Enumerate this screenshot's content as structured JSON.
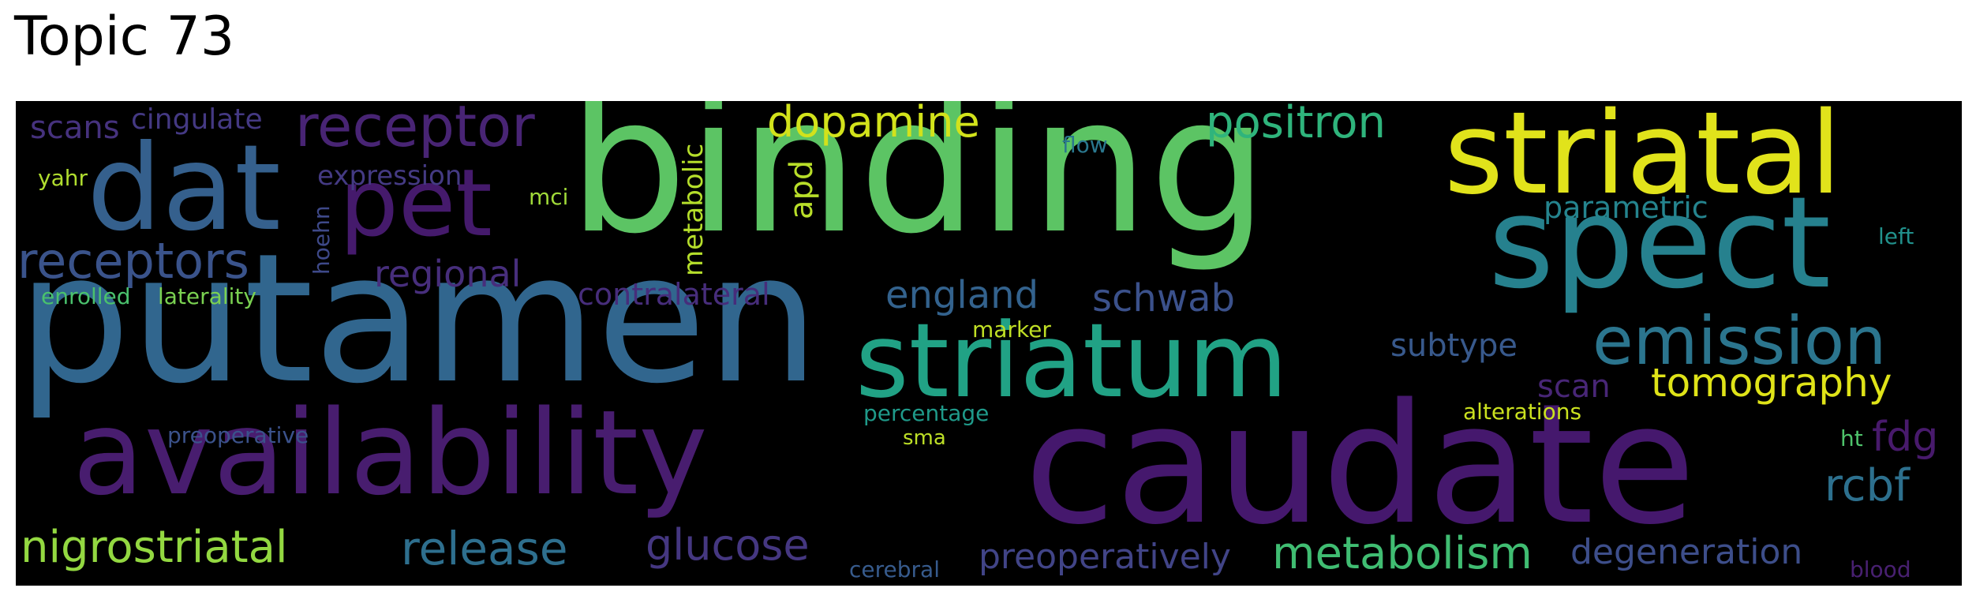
{
  "title": "Topic 73",
  "words": {
    "binding": {
      "text": "binding",
      "color": "#5cc464"
    },
    "putamen": {
      "text": "putamen",
      "color": "#31668e"
    },
    "caudate": {
      "text": "caudate",
      "color": "#45186d"
    },
    "availability": {
      "text": "availability",
      "color": "#481d6f"
    },
    "striatal": {
      "text": "striatal",
      "color": "#e1e31b"
    },
    "spect": {
      "text": "spect",
      "color": "#26818e"
    },
    "striatum": {
      "text": "striatum",
      "color": "#21a285"
    },
    "dat": {
      "text": "dat",
      "color": "#35608d"
    },
    "pet": {
      "text": "pet",
      "color": "#451a6c"
    },
    "emission": {
      "text": "emission",
      "color": "#2b758e"
    },
    "receptor": {
      "text": "receptor",
      "color": "#482474"
    },
    "receptors": {
      "text": "receptors",
      "color": "#3a538b"
    },
    "nigrostriatal": {
      "text": "nigrostriatal",
      "color": "#93d841"
    },
    "release": {
      "text": "release",
      "color": "#2e6f8e"
    },
    "metabolism": {
      "text": "metabolism",
      "color": "#40bd72"
    },
    "glucose": {
      "text": "glucose",
      "color": "#453781"
    },
    "dopamine": {
      "text": "dopamine",
      "color": "#d2e21b"
    },
    "positron": {
      "text": "positron",
      "color": "#2fb47c"
    },
    "tomography": {
      "text": "tomography",
      "color": "#dfe318"
    },
    "rcbf": {
      "text": "rcbf",
      "color": "#2d708e"
    },
    "fdg": {
      "text": "fdg",
      "color": "#481a6c"
    },
    "england": {
      "text": "england",
      "color": "#33628d"
    },
    "schwab": {
      "text": "schwab",
      "color": "#3b518b"
    },
    "regional": {
      "text": "regional",
      "color": "#472e7c"
    },
    "preoperatively": {
      "text": "preoperatively",
      "color": "#414487"
    },
    "degeneration": {
      "text": "degeneration",
      "color": "#3d4e8a"
    },
    "scans": {
      "text": "scans",
      "color": "#46327e"
    },
    "cingulate": {
      "text": "cingulate",
      "color": "#443983"
    },
    "expression": {
      "text": "expression",
      "color": "#443a83"
    },
    "contralateral": {
      "text": "contralateral",
      "color": "#472d7b"
    },
    "subtype": {
      "text": "subtype",
      "color": "#38598c"
    },
    "parametric": {
      "text": "parametric",
      "color": "#25848e"
    },
    "scan": {
      "text": "scan",
      "color": "#482677"
    },
    "metabolic": {
      "text": "metabolic",
      "color": "#b5de2b"
    },
    "apd": {
      "text": "apd",
      "color": "#b8de29"
    },
    "hoehn": {
      "text": "hoehn",
      "color": "#3e4989"
    },
    "yahr": {
      "text": "yahr",
      "color": "#b0dd2f"
    },
    "mci": {
      "text": "mci",
      "color": "#a0da39"
    },
    "flow": {
      "text": "flow",
      "color": "#2a778e"
    },
    "left": {
      "text": "left",
      "color": "#21918c"
    },
    "enrolled": {
      "text": "enrolled",
      "color": "#4ac16d"
    },
    "laterality": {
      "text": "laterality",
      "color": "#7ad151"
    },
    "marker": {
      "text": "marker",
      "color": "#c0df25"
    },
    "percentage": {
      "text": "percentage",
      "color": "#1f9a8a"
    },
    "alterations": {
      "text": "alterations",
      "color": "#cae11f"
    },
    "sma": {
      "text": "sma",
      "color": "#bddf26"
    },
    "preoperative": {
      "text": "preoperative",
      "color": "#3b528b"
    },
    "ht": {
      "text": "ht",
      "color": "#4ec36b"
    },
    "cerebral": {
      "text": "cerebral",
      "color": "#375b8d"
    },
    "blood": {
      "text": "blood",
      "color": "#482071"
    }
  }
}
